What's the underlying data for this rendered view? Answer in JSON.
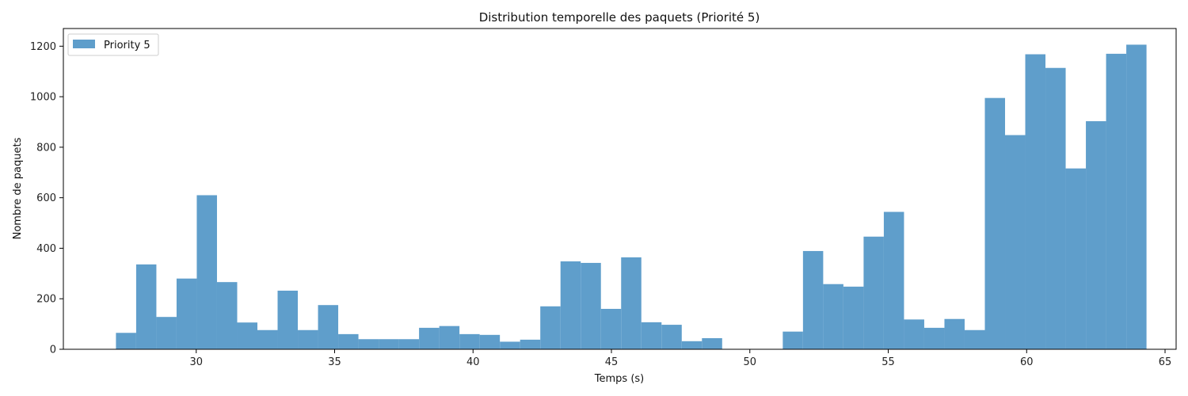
{
  "chart_data": {
    "type": "bar",
    "title": "Distribution temporelle des paquets (Priorité 5)",
    "xlabel": "Temps (s)",
    "ylabel": "Nombre de paquets",
    "xlim": [
      25.2,
      65.4
    ],
    "ylim": [
      0,
      1270
    ],
    "xticks": [
      30,
      35,
      40,
      45,
      50,
      55,
      60,
      65
    ],
    "yticks": [
      0,
      200,
      400,
      600,
      800,
      1000,
      1200
    ],
    "legend_position": "top-left",
    "grid": false,
    "color": "#5f9ecb",
    "series": [
      {
        "name": "Priority 5",
        "bin_width": 0.73,
        "bin_start": 27.1,
        "values": [
          65,
          336,
          128,
          280,
          610,
          266,
          106,
          76,
          232,
          76,
          175,
          60,
          40,
          40,
          40,
          85,
          92,
          60,
          57,
          30,
          38,
          170,
          348,
          342,
          160,
          364,
          107,
          97,
          32,
          44,
          0,
          0,
          0,
          70,
          389,
          258,
          248,
          446,
          544,
          118,
          85,
          120,
          76,
          995,
          848,
          1168,
          1114,
          716,
          903,
          1170,
          1206
        ]
      }
    ]
  }
}
